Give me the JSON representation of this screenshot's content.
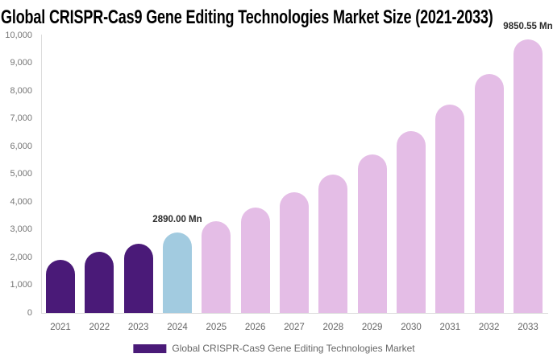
{
  "title": "Global CRISPR-Cas9 Gene Editing Technologies Market Size (2021-2033)",
  "chart_data": {
    "type": "bar",
    "title": "Global CRISPR-Cas9 Gene Editing Technologies Market Size (2021-2033)",
    "categories": [
      "2021",
      "2022",
      "2023",
      "2024",
      "2025",
      "2026",
      "2027",
      "2028",
      "2029",
      "2030",
      "2031",
      "2032",
      "2033"
    ],
    "series": [
      {
        "name": "Global CRISPR-Cas9 Gene Editing Technologies Market",
        "values": [
          1900,
          2200,
          2500,
          2890,
          3300,
          3800,
          4350,
          4980,
          5700,
          6550,
          7500,
          8600,
          9850.55
        ]
      }
    ],
    "bar_colors": [
      "#4A1A78",
      "#4A1A78",
      "#4A1A78",
      "#A2CBE0",
      "#E4BDE6",
      "#E4BDE6",
      "#E4BDE6",
      "#E4BDE6",
      "#E4BDE6",
      "#E4BDE6",
      "#E4BDE6",
      "#E4BDE6",
      "#E4BDE6"
    ],
    "data_labels": [
      {
        "category": "2024",
        "text": "2890.00 Mn"
      },
      {
        "category": "2033",
        "text": "9850.55 Mn"
      }
    ],
    "xlabel": "",
    "ylabel": "",
    "ylim": [
      0,
      10000
    ],
    "ytick_step": 1000,
    "ytick_labels": [
      "0",
      "1,000",
      "2,000",
      "3,000",
      "4,000",
      "5,000",
      "6,000",
      "7,000",
      "8,000",
      "9,000",
      "10,000"
    ],
    "grid": false,
    "legend": {
      "position": "bottom",
      "label": "Global CRISPR-Cas9 Gene Editing Technologies Market",
      "swatch_color": "#4A1A78"
    }
  },
  "colors": {
    "background": "#FFFFFF",
    "bar_dark_purple": "#4A1A78",
    "bar_light_blue": "#A2CBE0",
    "bar_pink": "#E4BDE6",
    "axis_line": "#DCDCDC",
    "ytick_text": "#757575",
    "xtick_text": "#666666",
    "data_label_text": "#2B2B2B",
    "title_text": "#000000",
    "legend_text": "#666666"
  }
}
